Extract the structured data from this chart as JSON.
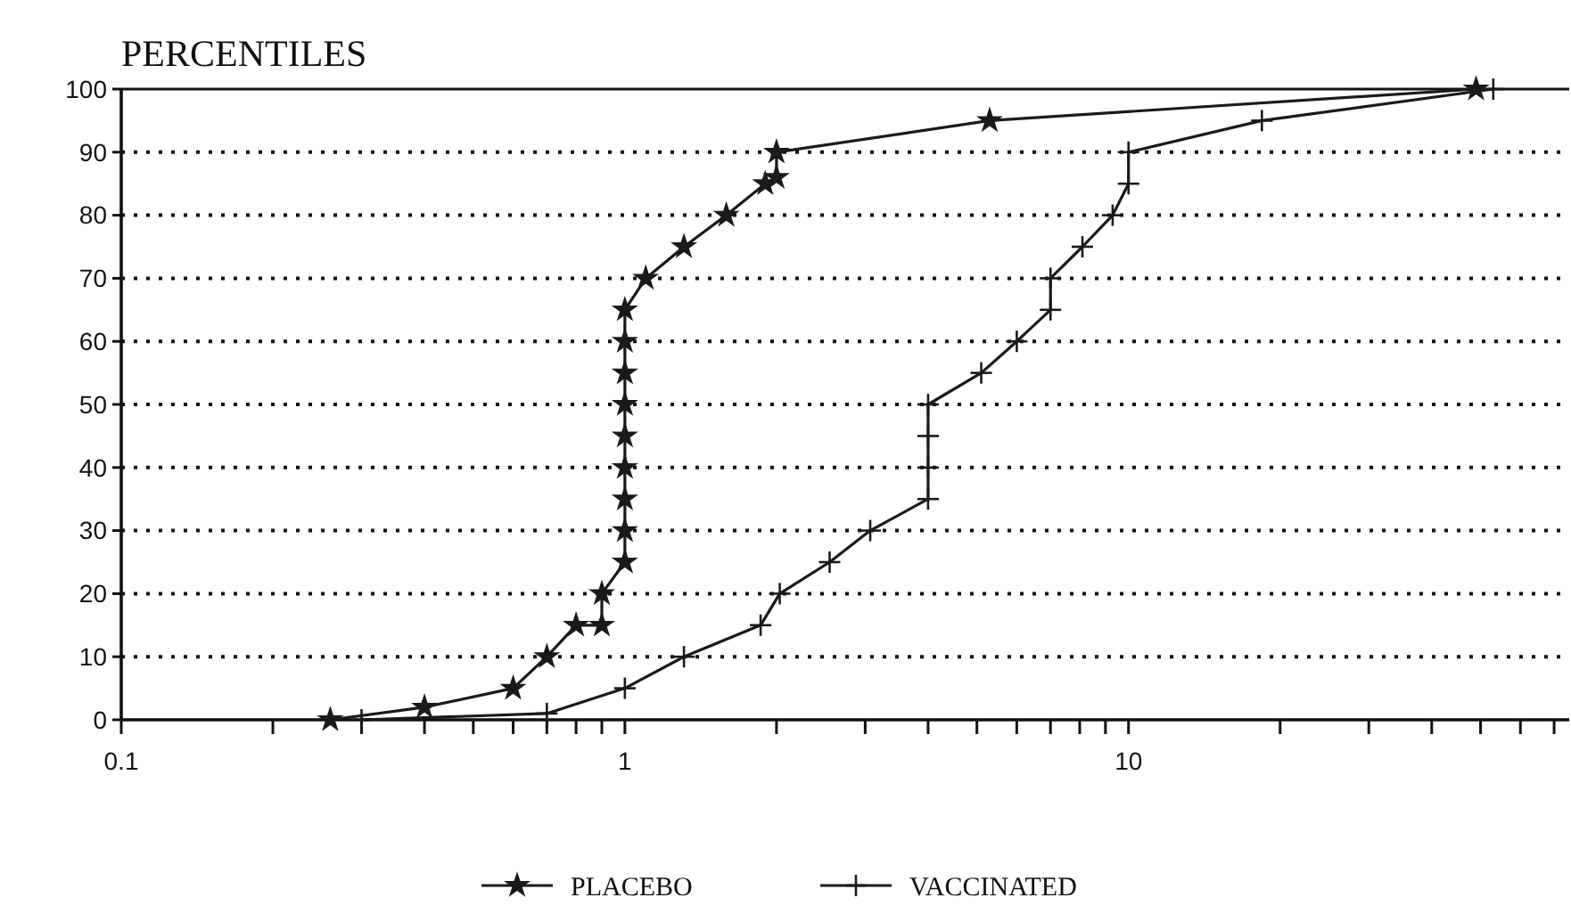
{
  "chart_data": {
    "type": "line",
    "ylabel": "PERCENTILES",
    "log": "x",
    "grid": "y",
    "legend": "bottom",
    "line_style": "solid",
    "xlim": [
      0.1,
      75
    ],
    "ylim": [
      0,
      100
    ],
    "xticks": [
      0.1,
      {
        "value": 0.2,
        "label": null
      },
      {
        "value": 0.3,
        "label": null
      },
      {
        "value": 0.4,
        "label": null
      },
      {
        "value": 0.5,
        "label": null
      },
      {
        "value": 0.6,
        "label": null
      },
      {
        "value": 0.7,
        "label": null
      },
      {
        "value": 0.8,
        "label": null
      },
      {
        "value": 0.9,
        "label": null
      },
      1,
      {
        "value": 2,
        "label": null
      },
      {
        "value": 3,
        "label": null
      },
      {
        "value": 4,
        "label": null
      },
      {
        "value": 5,
        "label": null
      },
      {
        "value": 6,
        "label": null
      },
      {
        "value": 7,
        "label": null
      },
      {
        "value": 8,
        "label": null
      },
      {
        "value": 9,
        "label": null
      },
      10,
      {
        "value": 20,
        "label": null
      },
      {
        "value": 30,
        "label": null
      },
      {
        "value": 40,
        "label": null
      },
      {
        "value": 50,
        "label": null
      },
      {
        "value": 60,
        "label": null
      },
      {
        "value": 70,
        "label": null
      }
    ],
    "yticks": [
      0,
      10,
      20,
      30,
      40,
      50,
      60,
      70,
      80,
      90,
      100
    ],
    "series": [
      {
        "name": "PLACEBO",
        "color": "#1a1a1a",
        "marker": "star",
        "x": [
          0.26,
          0.4,
          0.6,
          0.7,
          0.8,
          0.9,
          0.9,
          1,
          1,
          1,
          1,
          1,
          1,
          1,
          1,
          1,
          1.1,
          1.31,
          1.59,
          1.9,
          2,
          2,
          5.3,
          49
        ],
        "values": [
          0,
          2,
          5,
          10,
          15,
          15,
          20,
          25,
          30,
          35,
          40,
          45,
          50,
          55,
          60,
          65,
          70,
          75,
          80,
          85,
          86,
          90,
          95,
          100
        ]
      },
      {
        "name": "VACCINATED",
        "color": "#1a1a1a",
        "marker": "cross",
        "x": [
          0.3,
          0.7,
          1,
          1.31,
          1.86,
          2.03,
          2.55,
          3.07,
          4,
          4,
          4,
          4,
          5.1,
          6,
          7,
          7,
          8.1,
          9.3,
          10,
          10,
          18.4,
          53
        ],
        "values": [
          0,
          1,
          5,
          10,
          15,
          20,
          25,
          30,
          35,
          40,
          45,
          50,
          55,
          60,
          65,
          70,
          75,
          80,
          85,
          90,
          95,
          100
        ]
      }
    ]
  }
}
